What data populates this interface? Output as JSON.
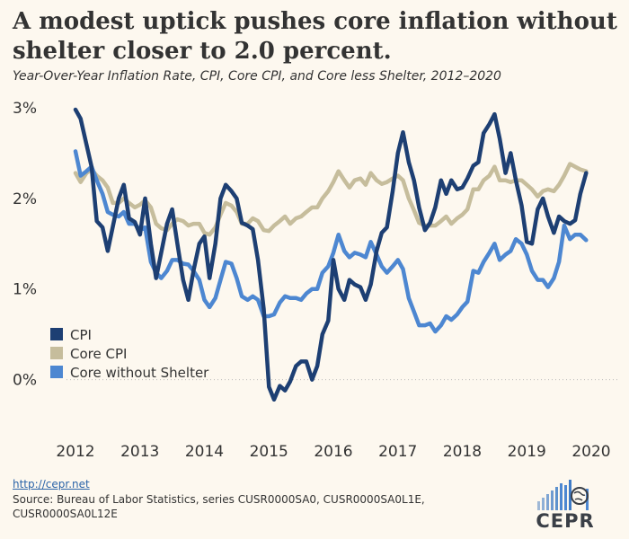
{
  "title": "A modest uptick pushes core inflation without shelter closer to 2.0 percent.",
  "subtitle": "Year-Over-Year Inflation Rate, CPI, Core CPI, and Core less Shelter, 2012–2020",
  "footer": {
    "link": "http://cepr.net",
    "source": "Source: Bureau of Labor Statistics, series CUSR0000SA0, CUSR0000SA0L1E, CUSR0000SA0L12E"
  },
  "logo": {
    "text": "CEPR",
    "icon": "bar-globe-logo-icon"
  },
  "colors": {
    "background": "#fdf8ef",
    "cpi": "#1d3f73",
    "core_cpi": "#c6bd9c",
    "core_without_shelter": "#4d87d1",
    "grid": "#bbbbbb",
    "text": "#333333"
  },
  "chart_data": {
    "type": "line",
    "title": "A modest uptick pushes core inflation without shelter closer to 2.0 percent.",
    "subtitle": "Year-Over-Year Inflation Rate, CPI, Core CPI, and Core less Shelter, 2012–2020",
    "xlabel": "",
    "ylabel": "",
    "xlim": [
      2012,
      2020
    ],
    "ylim": [
      -0.5,
      3.0
    ],
    "x_ticks": [
      2012,
      2013,
      2014,
      2015,
      2016,
      2017,
      2018,
      2019,
      2020
    ],
    "x_tick_labels": [
      "2012",
      "2013",
      "2014",
      "2015",
      "2016",
      "2017",
      "2018",
      "2019",
      "2020"
    ],
    "y_ticks": [
      0,
      1,
      2,
      3
    ],
    "y_tick_labels": [
      "0%",
      "1%",
      "2%",
      "3%"
    ],
    "grid": "dotted horizontal at 0% only",
    "legend_position": "lower-left",
    "series": [
      {
        "name": "CPI",
        "color": "#1d3f73",
        "points": [
          [
            2012.0,
            2.98
          ],
          [
            2012.08,
            2.88
          ],
          [
            2012.25,
            2.35
          ],
          [
            2012.33,
            1.75
          ],
          [
            2012.42,
            1.68
          ],
          [
            2012.5,
            1.42
          ],
          [
            2012.67,
            2.0
          ],
          [
            2012.75,
            2.15
          ],
          [
            2012.83,
            1.78
          ],
          [
            2012.92,
            1.74
          ],
          [
            2013.0,
            1.6
          ],
          [
            2013.08,
            2.0
          ],
          [
            2013.17,
            1.5
          ],
          [
            2013.25,
            1.12
          ],
          [
            2013.33,
            1.4
          ],
          [
            2013.42,
            1.72
          ],
          [
            2013.5,
            1.88
          ],
          [
            2013.58,
            1.5
          ],
          [
            2013.67,
            1.1
          ],
          [
            2013.75,
            0.88
          ],
          [
            2013.83,
            1.2
          ],
          [
            2013.92,
            1.5
          ],
          [
            2014.0,
            1.58
          ],
          [
            2014.08,
            1.12
          ],
          [
            2014.17,
            1.5
          ],
          [
            2014.25,
            2.0
          ],
          [
            2014.33,
            2.15
          ],
          [
            2014.42,
            2.08
          ],
          [
            2014.5,
            2.0
          ],
          [
            2014.58,
            1.73
          ],
          [
            2014.67,
            1.7
          ],
          [
            2014.75,
            1.66
          ],
          [
            2014.83,
            1.32
          ],
          [
            2014.92,
            0.78
          ],
          [
            2015.0,
            -0.08
          ],
          [
            2015.08,
            -0.22
          ],
          [
            2015.17,
            -0.07
          ],
          [
            2015.25,
            -0.12
          ],
          [
            2015.33,
            -0.02
          ],
          [
            2015.42,
            0.15
          ],
          [
            2015.5,
            0.2
          ],
          [
            2015.58,
            0.2
          ],
          [
            2015.67,
            0.0
          ],
          [
            2015.75,
            0.15
          ],
          [
            2015.83,
            0.5
          ],
          [
            2015.92,
            0.65
          ],
          [
            2016.0,
            1.32
          ],
          [
            2016.08,
            1.0
          ],
          [
            2016.17,
            0.88
          ],
          [
            2016.25,
            1.1
          ],
          [
            2016.33,
            1.05
          ],
          [
            2016.42,
            1.02
          ],
          [
            2016.5,
            0.88
          ],
          [
            2016.58,
            1.05
          ],
          [
            2016.67,
            1.42
          ],
          [
            2016.75,
            1.62
          ],
          [
            2016.83,
            1.68
          ],
          [
            2016.92,
            2.08
          ],
          [
            2017.0,
            2.5
          ],
          [
            2017.08,
            2.73
          ],
          [
            2017.17,
            2.4
          ],
          [
            2017.25,
            2.2
          ],
          [
            2017.33,
            1.9
          ],
          [
            2017.42,
            1.65
          ],
          [
            2017.5,
            1.73
          ],
          [
            2017.58,
            1.9
          ],
          [
            2017.67,
            2.2
          ],
          [
            2017.75,
            2.05
          ],
          [
            2017.83,
            2.2
          ],
          [
            2017.92,
            2.1
          ],
          [
            2018.0,
            2.12
          ],
          [
            2018.08,
            2.22
          ],
          [
            2018.17,
            2.36
          ],
          [
            2018.25,
            2.4
          ],
          [
            2018.33,
            2.72
          ],
          [
            2018.42,
            2.82
          ],
          [
            2018.5,
            2.93
          ],
          [
            2018.58,
            2.66
          ],
          [
            2018.67,
            2.28
          ],
          [
            2018.75,
            2.5
          ],
          [
            2018.83,
            2.2
          ],
          [
            2018.92,
            1.92
          ],
          [
            2019.0,
            1.52
          ],
          [
            2019.08,
            1.5
          ],
          [
            2019.17,
            1.88
          ],
          [
            2019.25,
            2.0
          ],
          [
            2019.33,
            1.8
          ],
          [
            2019.42,
            1.62
          ],
          [
            2019.5,
            1.8
          ],
          [
            2019.58,
            1.75
          ],
          [
            2019.67,
            1.72
          ],
          [
            2019.75,
            1.76
          ],
          [
            2019.83,
            2.05
          ],
          [
            2019.92,
            2.28
          ]
        ]
      },
      {
        "name": "Core CPI",
        "color": "#c6bd9c",
        "points": [
          [
            2012.0,
            2.28
          ],
          [
            2012.08,
            2.18
          ],
          [
            2012.17,
            2.28
          ],
          [
            2012.25,
            2.32
          ],
          [
            2012.33,
            2.25
          ],
          [
            2012.42,
            2.2
          ],
          [
            2012.5,
            2.12
          ],
          [
            2012.58,
            1.95
          ],
          [
            2012.67,
            1.95
          ],
          [
            2012.75,
            2.0
          ],
          [
            2012.83,
            1.95
          ],
          [
            2012.92,
            1.9
          ],
          [
            2013.0,
            1.93
          ],
          [
            2013.08,
            1.98
          ],
          [
            2013.17,
            1.9
          ],
          [
            2013.25,
            1.72
          ],
          [
            2013.33,
            1.67
          ],
          [
            2013.42,
            1.65
          ],
          [
            2013.5,
            1.72
          ],
          [
            2013.58,
            1.77
          ],
          [
            2013.67,
            1.75
          ],
          [
            2013.75,
            1.7
          ],
          [
            2013.83,
            1.72
          ],
          [
            2013.92,
            1.72
          ],
          [
            2014.0,
            1.62
          ],
          [
            2014.08,
            1.6
          ],
          [
            2014.17,
            1.68
          ],
          [
            2014.25,
            1.82
          ],
          [
            2014.33,
            1.95
          ],
          [
            2014.42,
            1.92
          ],
          [
            2014.5,
            1.85
          ],
          [
            2014.58,
            1.72
          ],
          [
            2014.67,
            1.72
          ],
          [
            2014.75,
            1.78
          ],
          [
            2014.83,
            1.75
          ],
          [
            2014.92,
            1.65
          ],
          [
            2015.0,
            1.64
          ],
          [
            2015.08,
            1.7
          ],
          [
            2015.17,
            1.75
          ],
          [
            2015.25,
            1.8
          ],
          [
            2015.33,
            1.72
          ],
          [
            2015.42,
            1.78
          ],
          [
            2015.5,
            1.8
          ],
          [
            2015.58,
            1.85
          ],
          [
            2015.67,
            1.9
          ],
          [
            2015.75,
            1.9
          ],
          [
            2015.83,
            2.0
          ],
          [
            2015.92,
            2.08
          ],
          [
            2016.0,
            2.18
          ],
          [
            2016.08,
            2.3
          ],
          [
            2016.17,
            2.2
          ],
          [
            2016.25,
            2.12
          ],
          [
            2016.33,
            2.2
          ],
          [
            2016.42,
            2.22
          ],
          [
            2016.5,
            2.15
          ],
          [
            2016.58,
            2.28
          ],
          [
            2016.67,
            2.2
          ],
          [
            2016.75,
            2.16
          ],
          [
            2016.83,
            2.18
          ],
          [
            2016.92,
            2.22
          ],
          [
            2017.0,
            2.25
          ],
          [
            2017.08,
            2.2
          ],
          [
            2017.17,
            2.0
          ],
          [
            2017.25,
            1.87
          ],
          [
            2017.33,
            1.73
          ],
          [
            2017.42,
            1.7
          ],
          [
            2017.5,
            1.7
          ],
          [
            2017.58,
            1.7
          ],
          [
            2017.67,
            1.75
          ],
          [
            2017.75,
            1.8
          ],
          [
            2017.83,
            1.72
          ],
          [
            2017.92,
            1.78
          ],
          [
            2018.0,
            1.82
          ],
          [
            2018.08,
            1.88
          ],
          [
            2018.17,
            2.1
          ],
          [
            2018.25,
            2.1
          ],
          [
            2018.33,
            2.2
          ],
          [
            2018.42,
            2.25
          ],
          [
            2018.5,
            2.35
          ],
          [
            2018.58,
            2.2
          ],
          [
            2018.67,
            2.2
          ],
          [
            2018.75,
            2.18
          ],
          [
            2018.83,
            2.2
          ],
          [
            2018.92,
            2.2
          ],
          [
            2019.0,
            2.15
          ],
          [
            2019.08,
            2.1
          ],
          [
            2019.17,
            2.02
          ],
          [
            2019.25,
            2.08
          ],
          [
            2019.33,
            2.1
          ],
          [
            2019.42,
            2.08
          ],
          [
            2019.5,
            2.15
          ],
          [
            2019.58,
            2.25
          ],
          [
            2019.67,
            2.38
          ],
          [
            2019.75,
            2.35
          ],
          [
            2019.83,
            2.32
          ],
          [
            2019.92,
            2.3
          ]
        ]
      },
      {
        "name": "Core without Shelter",
        "color": "#4d87d1",
        "points": [
          [
            2012.0,
            2.52
          ],
          [
            2012.08,
            2.25
          ],
          [
            2012.17,
            2.3
          ],
          [
            2012.25,
            2.35
          ],
          [
            2012.33,
            2.2
          ],
          [
            2012.42,
            2.05
          ],
          [
            2012.5,
            1.85
          ],
          [
            2012.58,
            1.82
          ],
          [
            2012.67,
            1.8
          ],
          [
            2012.75,
            1.85
          ],
          [
            2012.83,
            1.72
          ],
          [
            2012.92,
            1.72
          ],
          [
            2013.0,
            1.65
          ],
          [
            2013.08,
            1.68
          ],
          [
            2013.17,
            1.3
          ],
          [
            2013.25,
            1.18
          ],
          [
            2013.33,
            1.12
          ],
          [
            2013.42,
            1.2
          ],
          [
            2013.5,
            1.32
          ],
          [
            2013.58,
            1.32
          ],
          [
            2013.67,
            1.28
          ],
          [
            2013.75,
            1.27
          ],
          [
            2013.83,
            1.2
          ],
          [
            2013.92,
            1.1
          ],
          [
            2014.0,
            0.88
          ],
          [
            2014.08,
            0.8
          ],
          [
            2014.17,
            0.9
          ],
          [
            2014.25,
            1.1
          ],
          [
            2014.33,
            1.3
          ],
          [
            2014.42,
            1.28
          ],
          [
            2014.5,
            1.12
          ],
          [
            2014.58,
            0.92
          ],
          [
            2014.67,
            0.88
          ],
          [
            2014.75,
            0.92
          ],
          [
            2014.83,
            0.88
          ],
          [
            2014.92,
            0.7
          ],
          [
            2015.0,
            0.7
          ],
          [
            2015.08,
            0.72
          ],
          [
            2015.17,
            0.85
          ],
          [
            2015.25,
            0.92
          ],
          [
            2015.33,
            0.9
          ],
          [
            2015.42,
            0.9
          ],
          [
            2015.5,
            0.88
          ],
          [
            2015.58,
            0.95
          ],
          [
            2015.67,
            1.0
          ],
          [
            2015.75,
            1.0
          ],
          [
            2015.83,
            1.18
          ],
          [
            2015.92,
            1.25
          ],
          [
            2016.0,
            1.4
          ],
          [
            2016.08,
            1.6
          ],
          [
            2016.17,
            1.42
          ],
          [
            2016.25,
            1.35
          ],
          [
            2016.33,
            1.4
          ],
          [
            2016.42,
            1.38
          ],
          [
            2016.5,
            1.35
          ],
          [
            2016.58,
            1.52
          ],
          [
            2016.67,
            1.38
          ],
          [
            2016.75,
            1.25
          ],
          [
            2016.83,
            1.18
          ],
          [
            2016.92,
            1.25
          ],
          [
            2017.0,
            1.32
          ],
          [
            2017.08,
            1.22
          ],
          [
            2017.17,
            0.9
          ],
          [
            2017.25,
            0.75
          ],
          [
            2017.33,
            0.6
          ],
          [
            2017.42,
            0.6
          ],
          [
            2017.5,
            0.62
          ],
          [
            2017.58,
            0.53
          ],
          [
            2017.67,
            0.6
          ],
          [
            2017.75,
            0.7
          ],
          [
            2017.83,
            0.66
          ],
          [
            2017.92,
            0.72
          ],
          [
            2018.0,
            0.8
          ],
          [
            2018.08,
            0.86
          ],
          [
            2018.17,
            1.2
          ],
          [
            2018.25,
            1.18
          ],
          [
            2018.33,
            1.3
          ],
          [
            2018.42,
            1.4
          ],
          [
            2018.5,
            1.5
          ],
          [
            2018.58,
            1.32
          ],
          [
            2018.67,
            1.38
          ],
          [
            2018.75,
            1.42
          ],
          [
            2018.83,
            1.55
          ],
          [
            2018.92,
            1.5
          ],
          [
            2019.0,
            1.38
          ],
          [
            2019.08,
            1.2
          ],
          [
            2019.17,
            1.1
          ],
          [
            2019.25,
            1.1
          ],
          [
            2019.33,
            1.02
          ],
          [
            2019.42,
            1.12
          ],
          [
            2019.5,
            1.3
          ],
          [
            2019.58,
            1.7
          ],
          [
            2019.67,
            1.55
          ],
          [
            2019.75,
            1.6
          ],
          [
            2019.83,
            1.6
          ],
          [
            2019.92,
            1.54
          ]
        ]
      }
    ]
  }
}
